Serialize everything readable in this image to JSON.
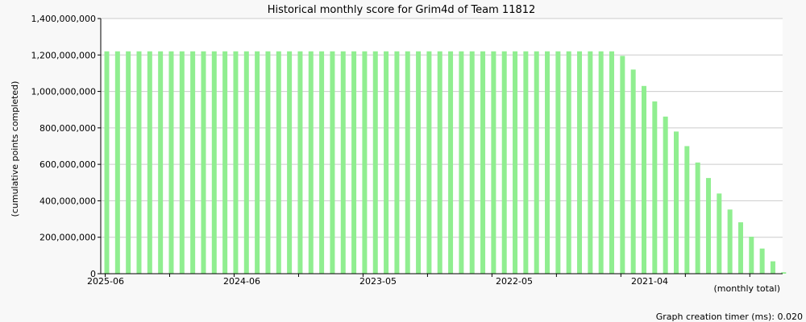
{
  "chart_data": {
    "type": "bar",
    "title": "Historical monthly score for Grim4d of Team 11812",
    "ylabel": "(cumulative points completed)",
    "xlabel": "(monthly total)",
    "footer": "Graph creation timer (ms): 0.020",
    "ylim": [
      0,
      1400000000
    ],
    "y_ticks": [
      "0",
      "200,000,000",
      "400,000,000",
      "600,000,000",
      "800,000,000",
      "1,000,000,000",
      "1,200,000,000",
      "1,400,000,000"
    ],
    "x_tick_labels": [
      "2025-06",
      "2024-06",
      "2023-05",
      "2022-05",
      "2021-04"
    ],
    "grid": true,
    "bar_color": "#90ee90",
    "values": [
      1220000000,
      1220000000,
      1220000000,
      1220000000,
      1220000000,
      1220000000,
      1220000000,
      1220000000,
      1220000000,
      1220000000,
      1220000000,
      1220000000,
      1220000000,
      1220000000,
      1220000000,
      1220000000,
      1220000000,
      1220000000,
      1220000000,
      1220000000,
      1220000000,
      1220000000,
      1220000000,
      1220000000,
      1220000000,
      1220000000,
      1220000000,
      1220000000,
      1220000000,
      1220000000,
      1220000000,
      1220000000,
      1220000000,
      1220000000,
      1220000000,
      1220000000,
      1220000000,
      1220000000,
      1220000000,
      1220000000,
      1220000000,
      1220000000,
      1220000000,
      1220000000,
      1220000000,
      1220000000,
      1220000000,
      1220000000,
      1195000000,
      1120000000,
      1030000000,
      945000000,
      862000000,
      780000000,
      700000000,
      610000000,
      525000000,
      440000000,
      352000000,
      282000000,
      203000000,
      138000000,
      68000000,
      8000000
    ]
  }
}
